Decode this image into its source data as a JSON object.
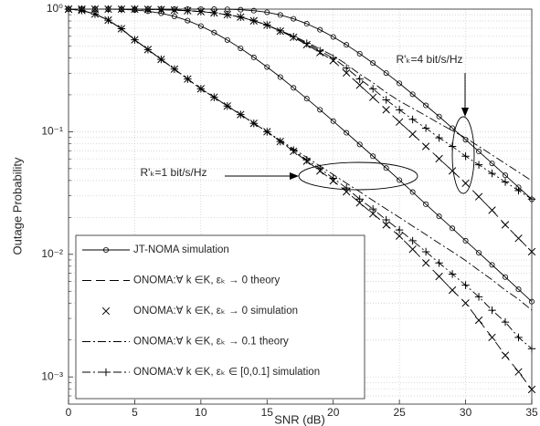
{
  "chart_data": {
    "type": "line",
    "xlabel": "SNR (dB)",
    "ylabel": "Outage Probability",
    "x": [
      0,
      1,
      2,
      3,
      4,
      5,
      6,
      7,
      8,
      9,
      10,
      11,
      12,
      13,
      14,
      15,
      16,
      17,
      18,
      19,
      20,
      21,
      22,
      23,
      24,
      25,
      26,
      27,
      28,
      29,
      30,
      31,
      32,
      33,
      34,
      35
    ],
    "xlim": [
      0,
      35
    ],
    "xticks": [
      0,
      5,
      10,
      15,
      20,
      25,
      30,
      35
    ],
    "ylim": [
      0.0006,
      1
    ],
    "log_y": true,
    "grid": true,
    "yticks": [
      {
        "value": 1,
        "label": "10⁰"
      },
      {
        "value": 0.1,
        "label": "10⁻¹"
      },
      {
        "value": 0.01,
        "label": "10⁻²"
      },
      {
        "value": 0.001,
        "label": "10⁻³"
      }
    ],
    "yminorticks": [
      0.0007,
      0.0008,
      0.0009,
      0.002,
      0.003,
      0.004,
      0.005,
      0.006,
      0.007,
      0.008,
      0.009,
      0.02,
      0.03,
      0.04,
      0.05,
      0.06,
      0.07,
      0.08,
      0.09,
      0.2,
      0.3,
      0.4,
      0.5,
      0.6,
      0.7,
      0.8,
      0.9
    ],
    "legend": "lower left",
    "series": [
      {
        "name": "JT-NOMA simulation",
        "color": "#000000",
        "line": "solid",
        "marker": "circle",
        "values": [
          1,
          1,
          0.9997,
          0.9985,
          0.9944,
          0.9836,
          0.962,
          0.925,
          0.872,
          0.806,
          0.727,
          0.644,
          0.56,
          0.479,
          0.404,
          0.337,
          0.279,
          0.228,
          0.186,
          0.151,
          0.122,
          0.0981,
          0.0787,
          0.0631,
          0.0505,
          0.0403,
          0.0322,
          0.0256,
          0.0204,
          0.0163,
          0.0129,
          0.0103,
          0.0082,
          0.00652,
          0.00518,
          0.00411
        ]
      },
      {
        "name": "ONOMA:∀ k ∈K, εₖ → 0 theory",
        "color": "#000000",
        "line": "dashed",
        "marker": "none",
        "values": [
          1,
          0.977,
          0.912,
          0.813,
          0.692,
          0.562,
          0.468,
          0.389,
          0.324,
          0.269,
          0.224,
          0.191,
          0.162,
          0.138,
          0.117,
          0.1,
          0.0832,
          0.0692,
          0.0575,
          0.0479,
          0.0398,
          0.0324,
          0.0263,
          0.0214,
          0.0174,
          0.0141,
          0.011,
          0.0085,
          0.0066,
          0.0051,
          0.004,
          0.0029,
          0.0021,
          0.0015,
          0.0011,
          0.00079
        ]
      },
      {
        "name": "ONOMA:∀ k ∈K, εₖ → 0 simulation",
        "color": "#000000",
        "line": "none",
        "marker": "x",
        "values": [
          1,
          0.977,
          0.912,
          0.813,
          0.692,
          0.562,
          0.468,
          0.389,
          0.324,
          0.269,
          0.224,
          0.191,
          0.162,
          0.138,
          0.117,
          0.1,
          0.0832,
          0.0692,
          0.0575,
          0.0479,
          0.0398,
          0.0324,
          0.0263,
          0.0214,
          0.0174,
          0.0141,
          0.011,
          0.0085,
          0.0066,
          0.0051,
          0.004,
          0.0029,
          0.0021,
          0.0015,
          0.0011,
          0.00079
        ]
      },
      {
        "name": "ONOMA:∀ k ∈K, εₖ → 0.1 theory",
        "color": "#000000",
        "line": "dashdot",
        "marker": "none",
        "values": [
          1,
          0.977,
          0.912,
          0.813,
          0.692,
          0.562,
          0.468,
          0.389,
          0.324,
          0.269,
          0.224,
          0.191,
          0.162,
          0.138,
          0.117,
          0.1,
          0.0851,
          0.0724,
          0.0617,
          0.0525,
          0.0447,
          0.038,
          0.0324,
          0.0275,
          0.0234,
          0.02,
          0.017,
          0.0145,
          0.0123,
          0.0105,
          0.0089,
          0.0074,
          0.0062,
          0.0051,
          0.0043,
          0.0035
        ]
      },
      {
        "name": "ONOMA:∀ k ∈K, εₖ ∈ [0,0.1] simulation",
        "color": "#000000",
        "line": "dashdot",
        "marker": "plus",
        "values": [
          1,
          0.977,
          0.912,
          0.813,
          0.692,
          0.562,
          0.468,
          0.389,
          0.324,
          0.269,
          0.224,
          0.191,
          0.162,
          0.138,
          0.117,
          0.1,
          0.0832,
          0.0708,
          0.0589,
          0.0501,
          0.0417,
          0.0347,
          0.0282,
          0.0234,
          0.0191,
          0.0158,
          0.0129,
          0.0105,
          0.0085,
          0.0069,
          0.0056,
          0.0045,
          0.0035,
          0.0028,
          0.0021,
          0.0017
        ]
      },
      {
        "color": "#000000",
        "line": "solid",
        "marker": "circle",
        "values": [
          1,
          1,
          1,
          1,
          1,
          1,
          1,
          1,
          1,
          1,
          0.9999,
          0.9992,
          0.9966,
          0.989,
          0.972,
          0.942,
          0.896,
          0.834,
          0.76,
          0.678,
          0.593,
          0.511,
          0.433,
          0.363,
          0.301,
          0.248,
          0.202,
          0.164,
          0.133,
          0.107,
          0.0861,
          0.069,
          0.0552,
          0.0441,
          0.0352,
          0.0281
        ]
      },
      {
        "color": "#000000",
        "line": "dashed",
        "marker": "none",
        "values": [
          1,
          1,
          1,
          1,
          1,
          1,
          0.995,
          0.991,
          0.982,
          0.971,
          0.955,
          0.933,
          0.902,
          0.861,
          0.803,
          0.741,
          0.661,
          0.589,
          0.513,
          0.442,
          0.38,
          0.302,
          0.24,
          0.191,
          0.151,
          0.12,
          0.0955,
          0.0759,
          0.0603,
          0.0479,
          0.038,
          0.0295,
          0.0229,
          0.0174,
          0.0135,
          0.0105
        ]
      },
      {
        "color": "#000000",
        "line": "none",
        "marker": "x",
        "values": [
          1,
          1,
          1,
          1,
          1,
          1,
          0.995,
          0.991,
          0.982,
          0.971,
          0.955,
          0.933,
          0.902,
          0.861,
          0.803,
          0.741,
          0.661,
          0.589,
          0.513,
          0.442,
          0.38,
          0.302,
          0.24,
          0.191,
          0.151,
          0.12,
          0.0955,
          0.0759,
          0.0603,
          0.0479,
          0.038,
          0.0295,
          0.0229,
          0.0174,
          0.0135,
          0.0105
        ]
      },
      {
        "color": "#000000",
        "line": "dashdot",
        "marker": "none",
        "values": [
          1,
          1,
          1,
          1,
          1,
          1,
          0.995,
          0.991,
          0.982,
          0.971,
          0.955,
          0.933,
          0.902,
          0.861,
          0.803,
          0.741,
          0.668,
          0.603,
          0.537,
          0.473,
          0.417,
          0.355,
          0.295,
          0.251,
          0.209,
          0.178,
          0.155,
          0.135,
          0.117,
          0.102,
          0.0891,
          0.0759,
          0.0646,
          0.055,
          0.0468,
          0.0398
        ]
      },
      {
        "color": "#000000",
        "line": "dashdot",
        "marker": "plus",
        "values": [
          1,
          1,
          1,
          1,
          1,
          1,
          0.995,
          0.991,
          0.982,
          0.971,
          0.955,
          0.933,
          0.902,
          0.861,
          0.803,
          0.741,
          0.664,
          0.596,
          0.525,
          0.457,
          0.398,
          0.331,
          0.269,
          0.224,
          0.182,
          0.151,
          0.126,
          0.107,
          0.0891,
          0.0759,
          0.0631,
          0.0537,
          0.0457,
          0.0389,
          0.0331,
          0.0282
        ]
      }
    ],
    "annotations": [
      {
        "text": "R'ₖ=4 bit/s/Hz"
      },
      {
        "text": "R'ₖ=1 bit/s/Hz"
      }
    ]
  }
}
